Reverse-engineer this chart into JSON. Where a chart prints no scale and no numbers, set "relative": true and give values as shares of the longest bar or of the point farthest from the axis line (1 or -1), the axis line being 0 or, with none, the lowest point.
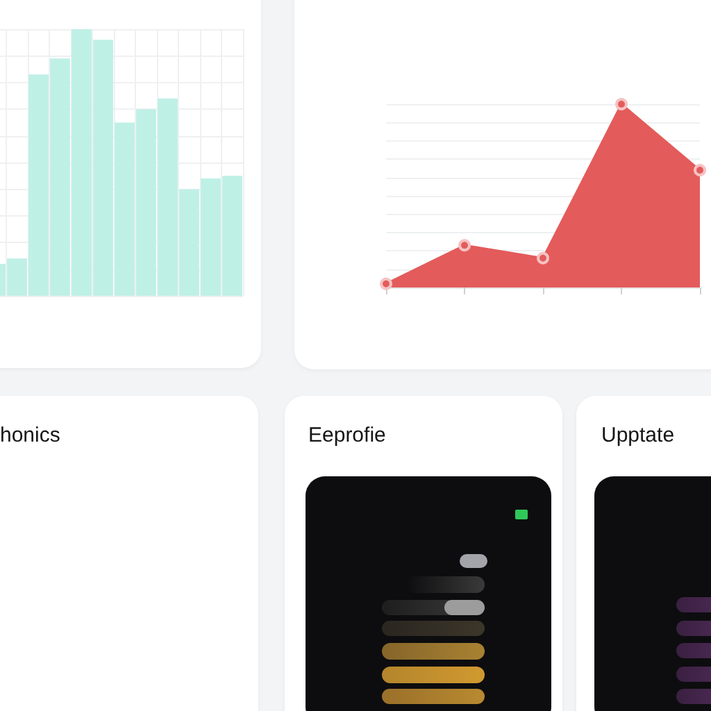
{
  "chart_data": [
    {
      "type": "bar",
      "categories": [
        null,
        null,
        null,
        null,
        null,
        null,
        null,
        null,
        null,
        null,
        null,
        null
      ],
      "values": [
        0.12,
        0.14,
        0.83,
        0.89,
        1,
        0.96,
        0.65,
        0.7,
        0.74,
        0.4,
        0.44,
        0.45
      ],
      "color": "#bff0e6",
      "relative": true,
      "grid": true
    },
    {
      "type": "area",
      "categories": [
        null,
        null,
        null,
        null,
        null
      ],
      "values": [
        0.02,
        0.23,
        0.16,
        1,
        0.64
      ],
      "color": "#e45b5b",
      "relative": true,
      "grid": "y",
      "marker": "circle"
    },
    {
      "type": "other",
      "title": "honics"
    },
    {
      "type": "other",
      "title": "Eeprofie"
    },
    {
      "type": "other",
      "title": "Upptate"
    }
  ]
}
